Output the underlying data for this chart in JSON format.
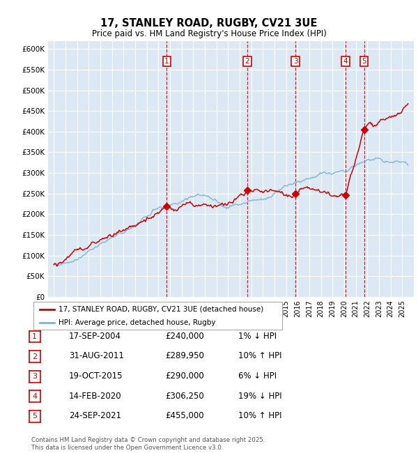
{
  "title": "17, STANLEY ROAD, RUGBY, CV21 3UE",
  "subtitle": "Price paid vs. HM Land Registry's House Price Index (HPI)",
  "legend_label_red": "17, STANLEY ROAD, RUGBY, CV21 3UE (detached house)",
  "legend_label_blue": "HPI: Average price, detached house, Rugby",
  "footer": "Contains HM Land Registry data © Crown copyright and database right 2025.\nThis data is licensed under the Open Government Licence v3.0.",
  "transactions": [
    {
      "num": 1,
      "date": "17-SEP-2004",
      "price": 240000,
      "pct": "1%",
      "dir": "↓",
      "date_val": 2004.71
    },
    {
      "num": 2,
      "date": "31-AUG-2011",
      "price": 289950,
      "pct": "10%",
      "dir": "↑",
      "date_val": 2011.66
    },
    {
      "num": 3,
      "date": "19-OCT-2015",
      "price": 290000,
      "pct": "6%",
      "dir": "↓",
      "date_val": 2015.8
    },
    {
      "num": 4,
      "date": "14-FEB-2020",
      "price": 306250,
      "pct": "19%",
      "dir": "↓",
      "date_val": 2020.12
    },
    {
      "num": 5,
      "date": "24-SEP-2021",
      "price": 455000,
      "pct": "10%",
      "dir": "↑",
      "date_val": 2021.73
    }
  ],
  "plot_bg_color": "#dce9f5",
  "grid_color": "#ffffff",
  "red_color": "#cc0000",
  "blue_color": "#7fb3d3",
  "ylim": [
    0,
    620000
  ],
  "yticks": [
    0,
    50000,
    100000,
    150000,
    200000,
    250000,
    300000,
    350000,
    400000,
    450000,
    500000,
    550000,
    600000
  ]
}
